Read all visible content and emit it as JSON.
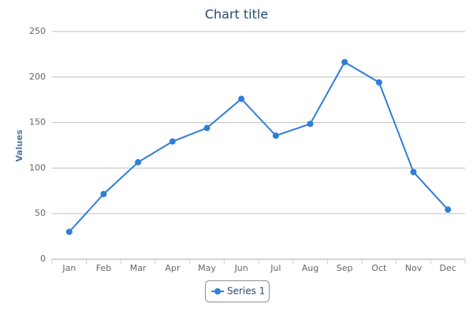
{
  "chart_data": {
    "type": "line",
    "title": "Chart title",
    "y_label": "Values",
    "categories": [
      "Jan",
      "Feb",
      "Mar",
      "Apr",
      "May",
      "Jun",
      "Jul",
      "Aug",
      "Sep",
      "Oct",
      "Nov",
      "Dec"
    ],
    "series": [
      {
        "name": "Series 1",
        "color": "#2f7ed8",
        "values": [
          29.9,
          71.5,
          106.4,
          129.2,
          144.0,
          176.0,
          135.6,
          148.5,
          216.4,
          194.1,
          95.6,
          54.4
        ]
      }
    ],
    "ylim": [
      0,
      250
    ],
    "yticks": [
      0,
      50,
      100,
      150,
      200,
      250
    ],
    "grid": true,
    "legend": "bottom"
  }
}
